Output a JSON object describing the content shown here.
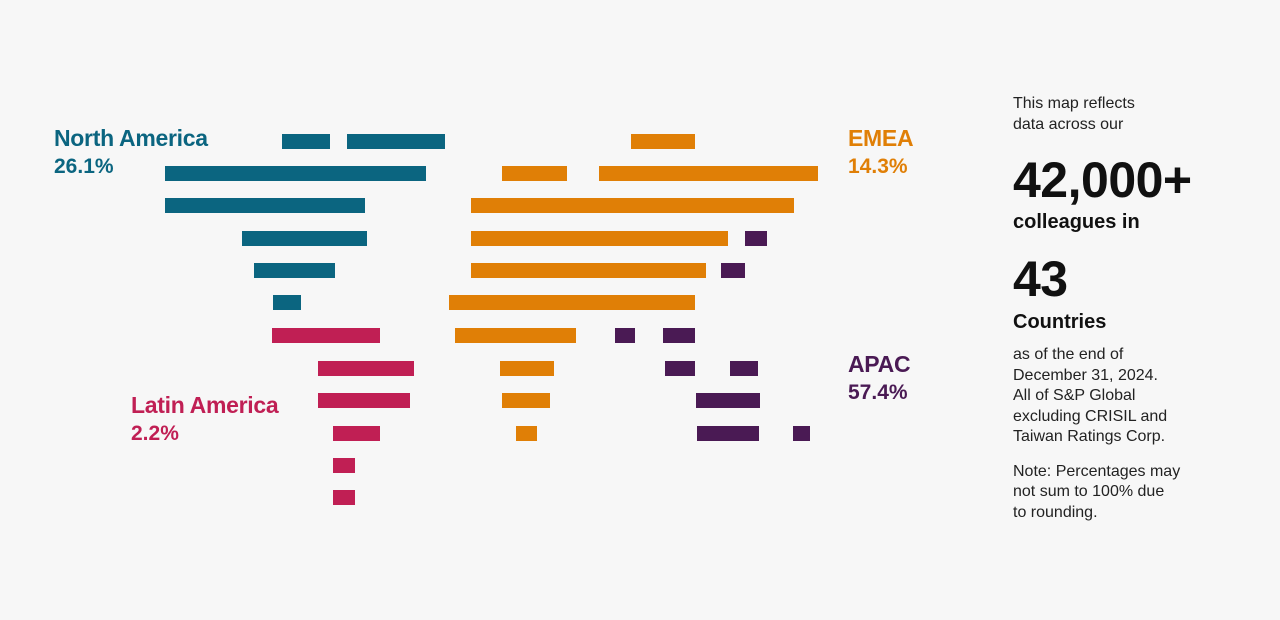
{
  "colors": {
    "north_america": "#0b6580",
    "emea": "#e07f06",
    "apac": "#4a1a54",
    "latin_america": "#c01f54",
    "background": "#f7f7f7"
  },
  "regions": {
    "north_america": {
      "name": "North America",
      "pct": "26.1%"
    },
    "emea": {
      "name": "EMEA",
      "pct": "14.3%"
    },
    "apac": {
      "name": "APAC",
      "pct": "57.4%"
    },
    "latin_america": {
      "name": "Latin America",
      "pct": "2.2%"
    }
  },
  "panel": {
    "intro": [
      "This map reflects",
      "data across our"
    ],
    "colleagues_count": "42,000+",
    "colleagues_label": "colleagues in",
    "countries_count": "43",
    "countries_label": "Countries",
    "as_of": [
      "as of the end of",
      "December 31, 2024.",
      "All of S&P Global",
      "excluding CRISIL and",
      "Taiwan Ratings Corp."
    ],
    "note": [
      "Note: Percentages may",
      "not sum to 100% due",
      "to rounding."
    ]
  }
}
